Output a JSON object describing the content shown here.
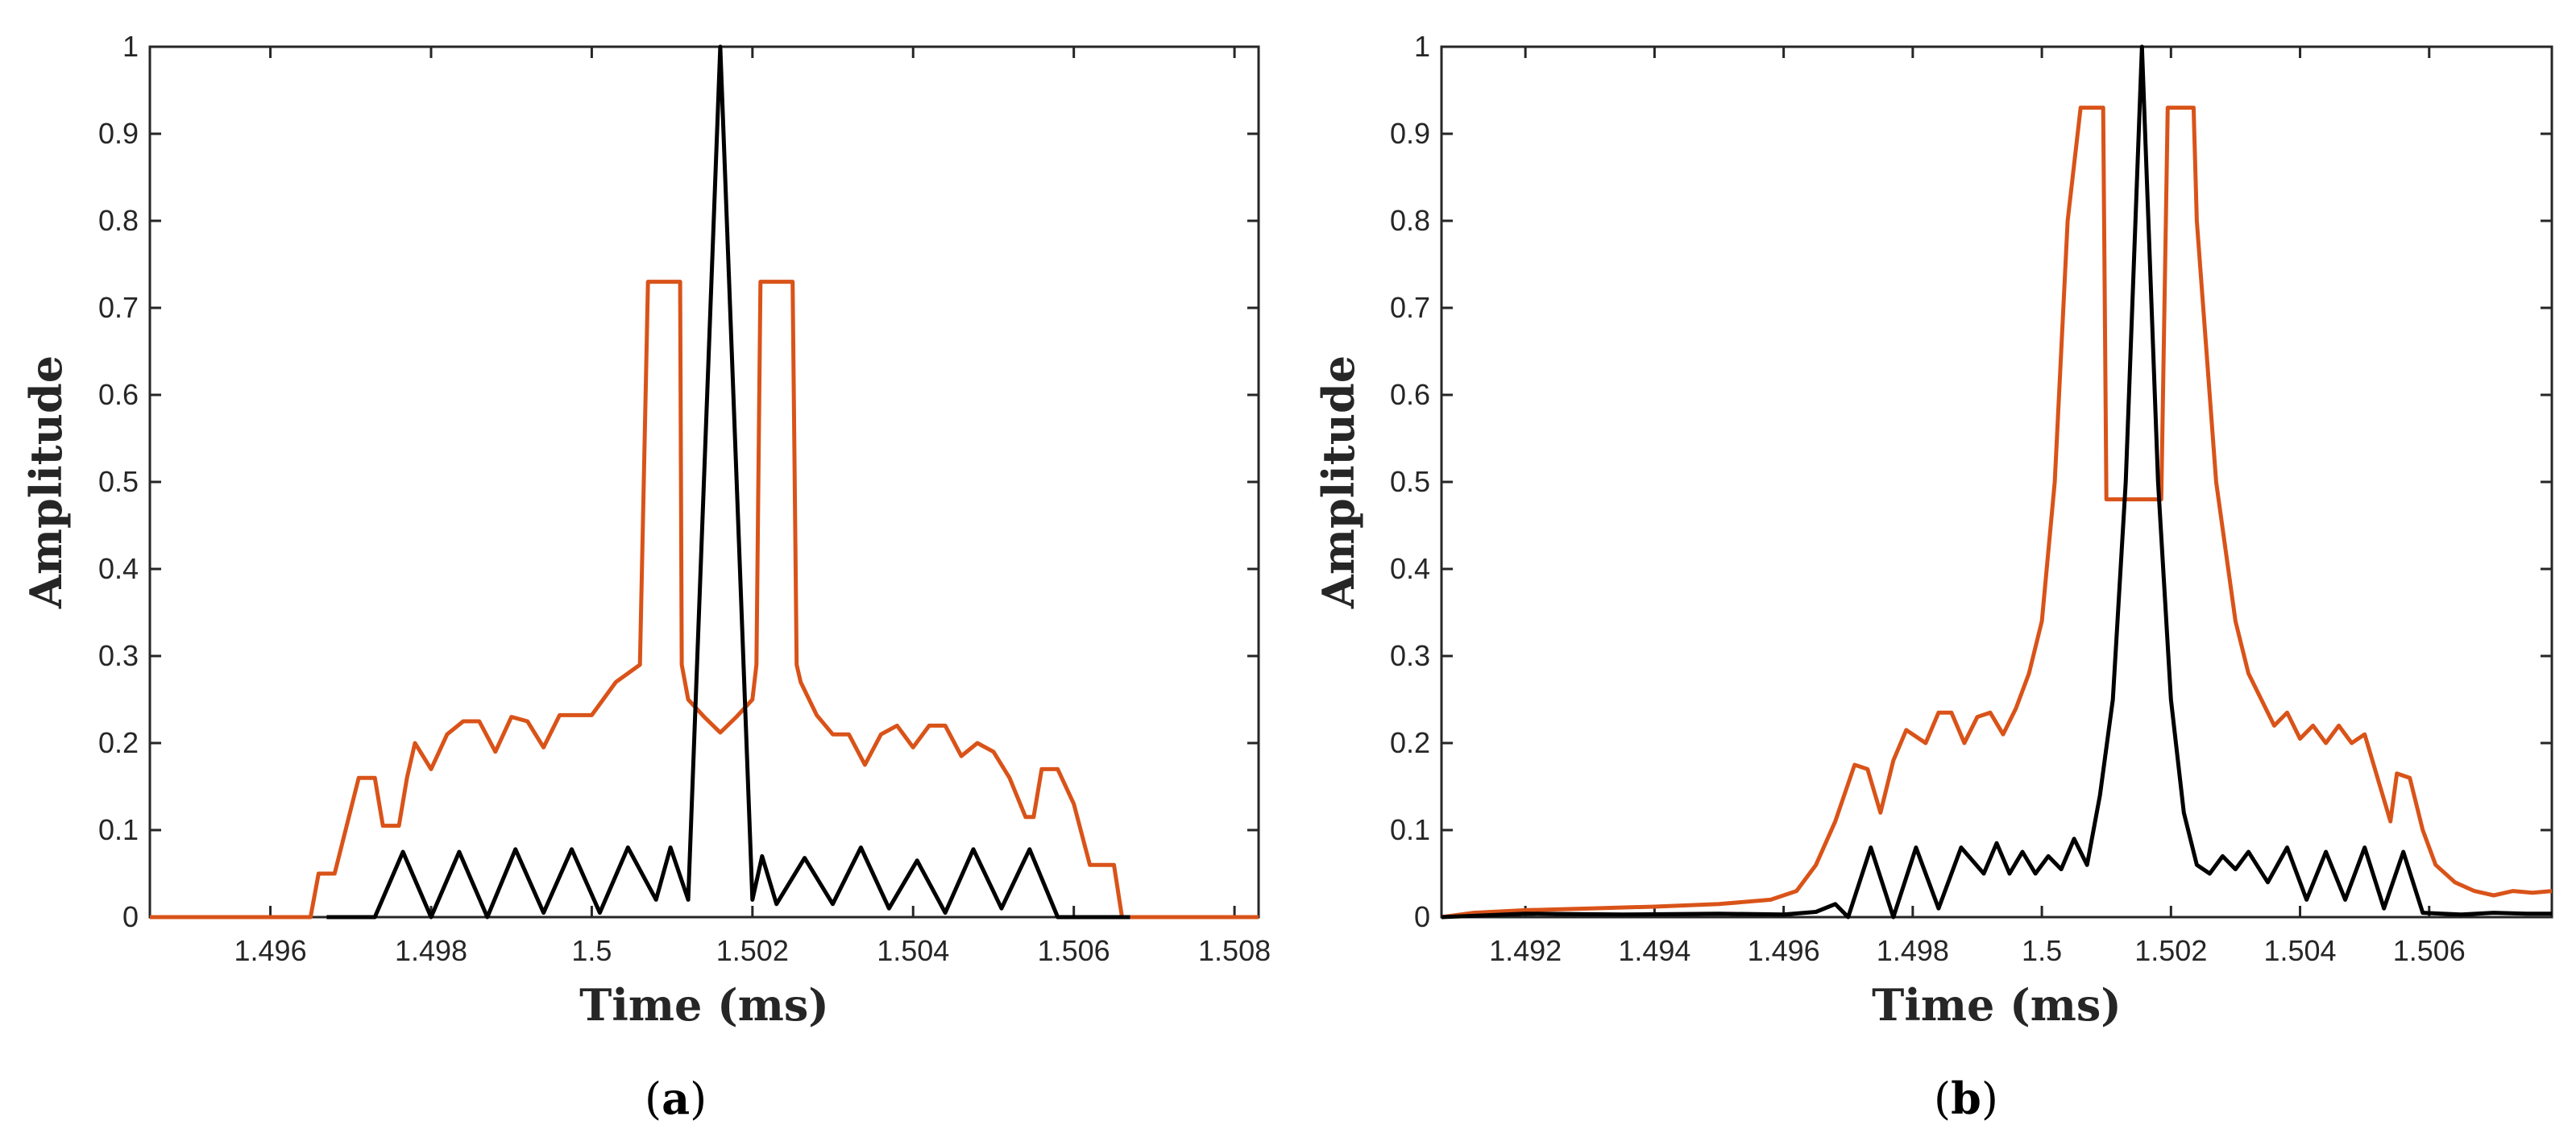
{
  "chart_data": [
    {
      "panel": "a",
      "panel_label": "(a)",
      "panel_letter": "a",
      "type": "line",
      "xlabel": "Time (ms)",
      "ylabel": "Amplitude",
      "xlim": [
        1.4945,
        1.5083
      ],
      "ylim": [
        0,
        1
      ],
      "xticks": [
        1.496,
        1.498,
        1.5,
        1.502,
        1.504,
        1.506,
        1.508
      ],
      "xticklabels": [
        "1.496",
        "1.498",
        "1.5",
        "1.502",
        "1.504",
        "1.506",
        "1.508"
      ],
      "yticks": [
        0,
        0.1,
        0.2,
        0.3,
        0.4,
        0.5,
        0.6,
        0.7,
        0.8,
        0.9,
        1
      ],
      "yticklabels": [
        "0",
        "0.1",
        "0.2",
        "0.3",
        "0.4",
        "0.5",
        "0.6",
        "0.7",
        "0.8",
        "0.9",
        "1"
      ],
      "series": [
        {
          "name": "orange",
          "color": "#D95319",
          "x": [
            1.4945,
            1.4965,
            1.4966,
            1.4967,
            1.4968,
            1.4971,
            1.4973,
            1.4974,
            1.4976,
            1.4977,
            1.4978,
            1.498,
            1.4982,
            1.4984,
            1.4986,
            1.4988,
            1.499,
            1.4992,
            1.4994,
            1.4996,
            1.4998,
            1.5,
            1.5003,
            1.5006,
            1.5007,
            1.50075,
            1.5008,
            1.5011,
            1.50112,
            1.5012,
            1.5014,
            1.5016,
            1.5018,
            1.502,
            1.50205,
            1.5021,
            1.5022,
            1.50245,
            1.5025,
            1.50255,
            1.5026,
            1.5028,
            1.503,
            1.5032,
            1.5034,
            1.5036,
            1.5038,
            1.504,
            1.5042,
            1.5044,
            1.5046,
            1.5048,
            1.505,
            1.5052,
            1.5054,
            1.5055,
            1.5056,
            1.5058,
            1.506,
            1.5062,
            1.5063,
            1.5065,
            1.5066,
            1.5067,
            1.5083
          ],
          "y": [
            0,
            0,
            0.05,
            0.05,
            0.05,
            0.16,
            0.16,
            0.105,
            0.105,
            0.16,
            0.2,
            0.17,
            0.21,
            0.225,
            0.225,
            0.19,
            0.23,
            0.225,
            0.195,
            0.232,
            0.232,
            0.232,
            0.27,
            0.29,
            0.73,
            0.73,
            0.73,
            0.73,
            0.29,
            0.25,
            0.23,
            0.212,
            0.23,
            0.25,
            0.29,
            0.73,
            0.73,
            0.73,
            0.73,
            0.29,
            0.27,
            0.232,
            0.21,
            0.21,
            0.175,
            0.21,
            0.22,
            0.195,
            0.22,
            0.22,
            0.185,
            0.2,
            0.19,
            0.16,
            0.115,
            0.115,
            0.17,
            0.17,
            0.13,
            0.06,
            0.06,
            0.06,
            0,
            0,
            0
          ]
        },
        {
          "name": "black",
          "color": "#000000",
          "x": [
            1.4967,
            1.4973,
            1.49765,
            1.498,
            1.49835,
            1.4987,
            1.49905,
            1.4994,
            1.49975,
            1.5001,
            1.50045,
            1.5008,
            1.50098,
            1.5012,
            1.5016,
            1.502,
            1.50212,
            1.5023,
            1.50265,
            1.503,
            1.50335,
            1.5037,
            1.50405,
            1.5044,
            1.50475,
            1.5051,
            1.50545,
            1.5058,
            1.5067
          ],
          "y": [
            0,
            0,
            0.075,
            0,
            0.075,
            0,
            0.078,
            0.005,
            0.078,
            0.005,
            0.08,
            0.02,
            0.08,
            0.02,
            1.0,
            0.02,
            0.07,
            0.015,
            0.068,
            0.015,
            0.08,
            0.01,
            0.065,
            0.005,
            0.078,
            0.01,
            0.078,
            0.0,
            0
          ]
        }
      ]
    },
    {
      "panel": "b",
      "panel_label": "(b)",
      "panel_letter": "b",
      "type": "line",
      "xlabel": "Time (ms)",
      "ylabel": "Amplitude",
      "xlim": [
        1.4907,
        1.5079
      ],
      "ylim": [
        0,
        1
      ],
      "xticks": [
        1.492,
        1.494,
        1.496,
        1.498,
        1.5,
        1.502,
        1.504,
        1.506
      ],
      "xticklabels": [
        "1.492",
        "1.494",
        "1.496",
        "1.498",
        "1.5",
        "1.502",
        "1.504",
        "1.506"
      ],
      "yticks": [
        0,
        0.1,
        0.2,
        0.3,
        0.4,
        0.5,
        0.6,
        0.7,
        0.8,
        0.9,
        1
      ],
      "yticklabels": [
        "0",
        "0.1",
        "0.2",
        "0.3",
        "0.4",
        "0.5",
        "0.6",
        "0.7",
        "0.8",
        "0.9",
        "1"
      ],
      "series": [
        {
          "name": "orange",
          "color": "#D95319",
          "x": [
            1.4907,
            1.4912,
            1.492,
            1.493,
            1.494,
            1.495,
            1.4958,
            1.4962,
            1.4965,
            1.4968,
            1.4971,
            1.4973,
            1.4975,
            1.4977,
            1.4979,
            1.4982,
            1.4984,
            1.4986,
            1.4988,
            1.499,
            1.4992,
            1.4994,
            1.4996,
            1.4998,
            1.5,
            1.5002,
            1.5004,
            1.5006,
            1.5007,
            1.5009,
            1.50095,
            1.501,
            1.5014,
            1.5015,
            1.5016,
            1.50185,
            1.50195,
            1.502,
            1.5022,
            1.50235,
            1.5024,
            1.5027,
            1.503,
            1.5032,
            1.5034,
            1.5036,
            1.5038,
            1.504,
            1.5042,
            1.5044,
            1.5046,
            1.5048,
            1.505,
            1.5052,
            1.5054,
            1.5055,
            1.5057,
            1.5059,
            1.5061,
            1.5064,
            1.5067,
            1.507,
            1.5073,
            1.5076,
            1.5079
          ],
          "y": [
            0.0,
            0.005,
            0.008,
            0.01,
            0.012,
            0.015,
            0.02,
            0.03,
            0.06,
            0.11,
            0.175,
            0.17,
            0.12,
            0.18,
            0.215,
            0.2,
            0.235,
            0.235,
            0.2,
            0.23,
            0.235,
            0.21,
            0.24,
            0.28,
            0.34,
            0.5,
            0.8,
            0.93,
            0.93,
            0.93,
            0.93,
            0.48,
            0.48,
            0.48,
            0.48,
            0.48,
            0.93,
            0.93,
            0.93,
            0.93,
            0.8,
            0.5,
            0.34,
            0.28,
            0.25,
            0.22,
            0.235,
            0.205,
            0.22,
            0.2,
            0.22,
            0.2,
            0.21,
            0.16,
            0.11,
            0.165,
            0.16,
            0.1,
            0.06,
            0.04,
            0.03,
            0.025,
            0.03,
            0.028,
            0.03
          ]
        },
        {
          "name": "black",
          "color": "#000000",
          "x": [
            1.4907,
            1.492,
            1.4935,
            1.495,
            1.496,
            1.4965,
            1.4968,
            1.497,
            1.49735,
            1.4977,
            1.49805,
            1.4984,
            1.49875,
            1.4991,
            1.4993,
            1.4995,
            1.4997,
            1.4999,
            1.5001,
            1.5003,
            1.5005,
            1.5007,
            1.5009,
            1.5011,
            1.5013,
            1.50155,
            1.5018,
            1.502,
            1.5022,
            1.5024,
            1.5026,
            1.5028,
            1.503,
            1.5032,
            1.5035,
            1.5038,
            1.5041,
            1.5044,
            1.5047,
            1.505,
            1.5053,
            1.5056,
            1.5059,
            1.5062,
            1.5065,
            1.507,
            1.5075,
            1.5079
          ],
          "y": [
            0.0,
            0.004,
            0.003,
            0.004,
            0.003,
            0.006,
            0.015,
            0.0,
            0.08,
            0.0,
            0.08,
            0.01,
            0.08,
            0.05,
            0.085,
            0.05,
            0.075,
            0.05,
            0.07,
            0.055,
            0.09,
            0.06,
            0.14,
            0.25,
            0.5,
            1.0,
            0.5,
            0.25,
            0.12,
            0.06,
            0.05,
            0.07,
            0.055,
            0.075,
            0.04,
            0.08,
            0.02,
            0.075,
            0.02,
            0.08,
            0.01,
            0.075,
            0.005,
            0.004,
            0.003,
            0.005,
            0.004,
            0.004
          ]
        }
      ]
    }
  ]
}
